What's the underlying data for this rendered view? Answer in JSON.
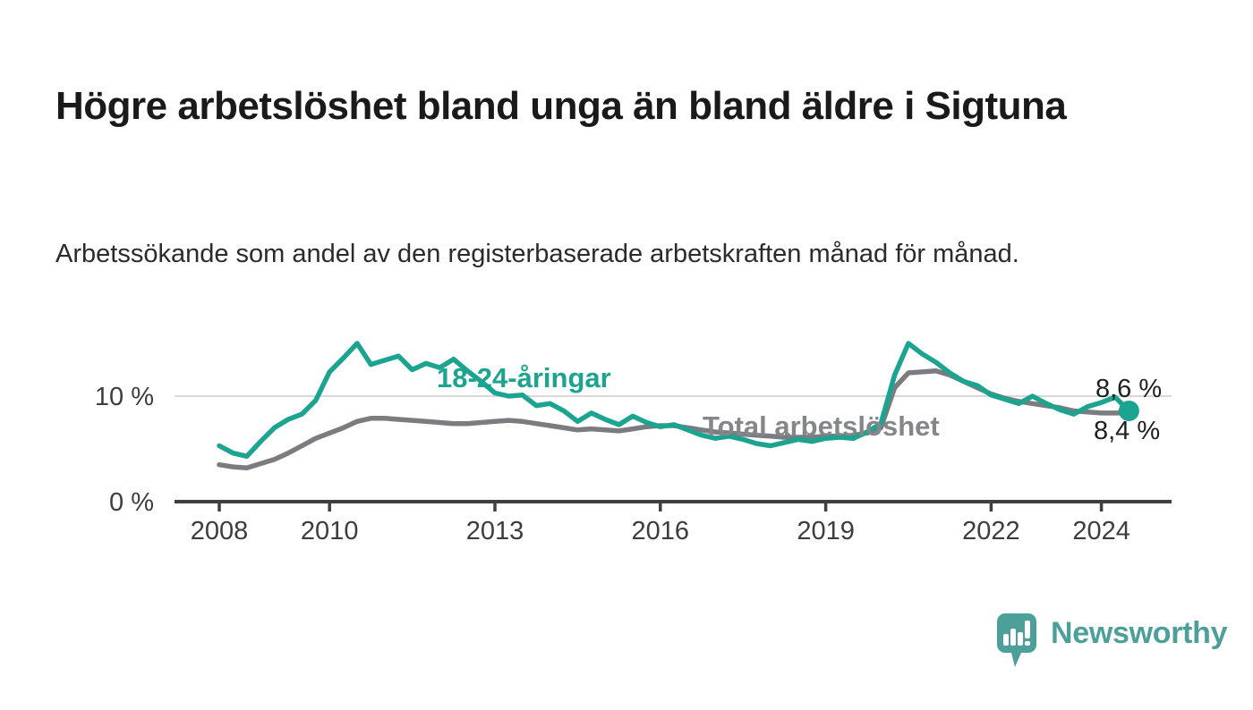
{
  "header": {
    "title": "Högre arbetslöshet bland unga än bland äldre i Sigtuna",
    "subtitle": "Arbetssökande som andel av den registerbaserade arbetskraften månad för månad."
  },
  "colors": {
    "youth_teal": "#1ba48f",
    "total_gray": "#7b7b80",
    "total_label_gray": "#85868a",
    "axis_dark": "#3f3f3f",
    "gridline_gray": "#d8d8d8",
    "value_label_black": "#1f1f1f",
    "brand_teal": "#4d9f99"
  },
  "footer": {
    "brand_name": "Newsworthy",
    "logo_icon": "bar-chart-speech-bubble-icon"
  },
  "chart_data": {
    "type": "line",
    "title": "Högre arbetslöshet bland unga än bland äldre i Sigtuna",
    "subtitle": "Arbetssökande som andel av den registerbaserade arbetskraften månad för månad.",
    "xlabel": "",
    "ylabel": "",
    "grid": "horizontal-at-10-only",
    "legend_position": "inline-labels-on-chart",
    "y_ticks": [
      {
        "value": 10,
        "label": "10 %"
      },
      {
        "value": 0,
        "label": "0 %"
      }
    ],
    "x_ticks": [
      2008,
      2010,
      2013,
      2016,
      2019,
      2022,
      2024
    ],
    "xlim": [
      2007.2,
      2025.3
    ],
    "ylim": [
      0,
      16
    ],
    "end_labels": [
      {
        "text": "8,6 %",
        "series": "18-24-åringar"
      },
      {
        "text": "8,4 %",
        "series": "Total arbetslöshet"
      }
    ],
    "x": [
      2008.0,
      2008.25,
      2008.5,
      2008.75,
      2009.0,
      2009.25,
      2009.5,
      2009.75,
      2010.0,
      2010.25,
      2010.5,
      2010.75,
      2011.0,
      2011.25,
      2011.5,
      2011.75,
      2012.0,
      2012.25,
      2012.5,
      2012.75,
      2013.0,
      2013.25,
      2013.5,
      2013.75,
      2014.0,
      2014.25,
      2014.5,
      2014.75,
      2015.0,
      2015.25,
      2015.5,
      2015.75,
      2016.0,
      2016.25,
      2016.5,
      2016.75,
      2017.0,
      2017.25,
      2017.5,
      2017.75,
      2018.0,
      2018.25,
      2018.5,
      2018.75,
      2019.0,
      2019.25,
      2019.5,
      2019.75,
      2020.0,
      2020.25,
      2020.5,
      2020.75,
      2021.0,
      2021.25,
      2021.5,
      2021.75,
      2022.0,
      2022.25,
      2022.5,
      2022.75,
      2023.0,
      2023.25,
      2023.5,
      2023.75,
      2024.0,
      2024.25,
      2024.5
    ],
    "series": [
      {
        "name": "Total arbetslöshet",
        "color": "#7b7b80",
        "end_value_label": "8,4 %",
        "values": [
          3.5,
          3.3,
          3.2,
          3.6,
          4.0,
          4.6,
          5.3,
          6.0,
          6.5,
          7.0,
          7.6,
          7.9,
          7.9,
          7.8,
          7.7,
          7.6,
          7.5,
          7.4,
          7.4,
          7.5,
          7.6,
          7.7,
          7.6,
          7.4,
          7.2,
          7.0,
          6.8,
          6.9,
          6.8,
          6.7,
          6.9,
          7.1,
          7.2,
          7.2,
          7.0,
          6.8,
          6.6,
          6.5,
          6.4,
          6.3,
          6.2,
          6.1,
          6.1,
          6.1,
          6.2,
          6.2,
          6.3,
          6.5,
          7.0,
          10.8,
          12.2,
          12.3,
          12.4,
          12.0,
          11.4,
          10.8,
          10.2,
          9.8,
          9.5,
          9.3,
          9.1,
          8.9,
          8.6,
          8.5,
          8.4,
          8.4,
          8.4
        ]
      },
      {
        "name": "18-24-åringar",
        "color": "#1ba48f",
        "end_dot": true,
        "end_value_label": "8,6 %",
        "values": [
          5.3,
          4.6,
          4.3,
          5.7,
          7.0,
          7.8,
          8.3,
          9.6,
          12.3,
          13.6,
          15.0,
          13.0,
          13.4,
          13.8,
          12.5,
          13.1,
          12.7,
          13.5,
          12.4,
          11.4,
          10.3,
          10.0,
          10.1,
          9.1,
          9.3,
          8.6,
          7.6,
          8.4,
          7.8,
          7.3,
          8.1,
          7.5,
          7.1,
          7.3,
          6.8,
          6.3,
          6.0,
          6.2,
          5.9,
          5.5,
          5.3,
          5.6,
          5.9,
          5.7,
          6.0,
          6.1,
          6.0,
          6.6,
          7.4,
          12.0,
          15.0,
          14.0,
          13.2,
          12.2,
          11.4,
          11.0,
          10.1,
          9.7,
          9.3,
          10.0,
          9.3,
          8.7,
          8.3,
          9.0,
          9.4,
          9.9,
          8.6
        ]
      }
    ]
  }
}
